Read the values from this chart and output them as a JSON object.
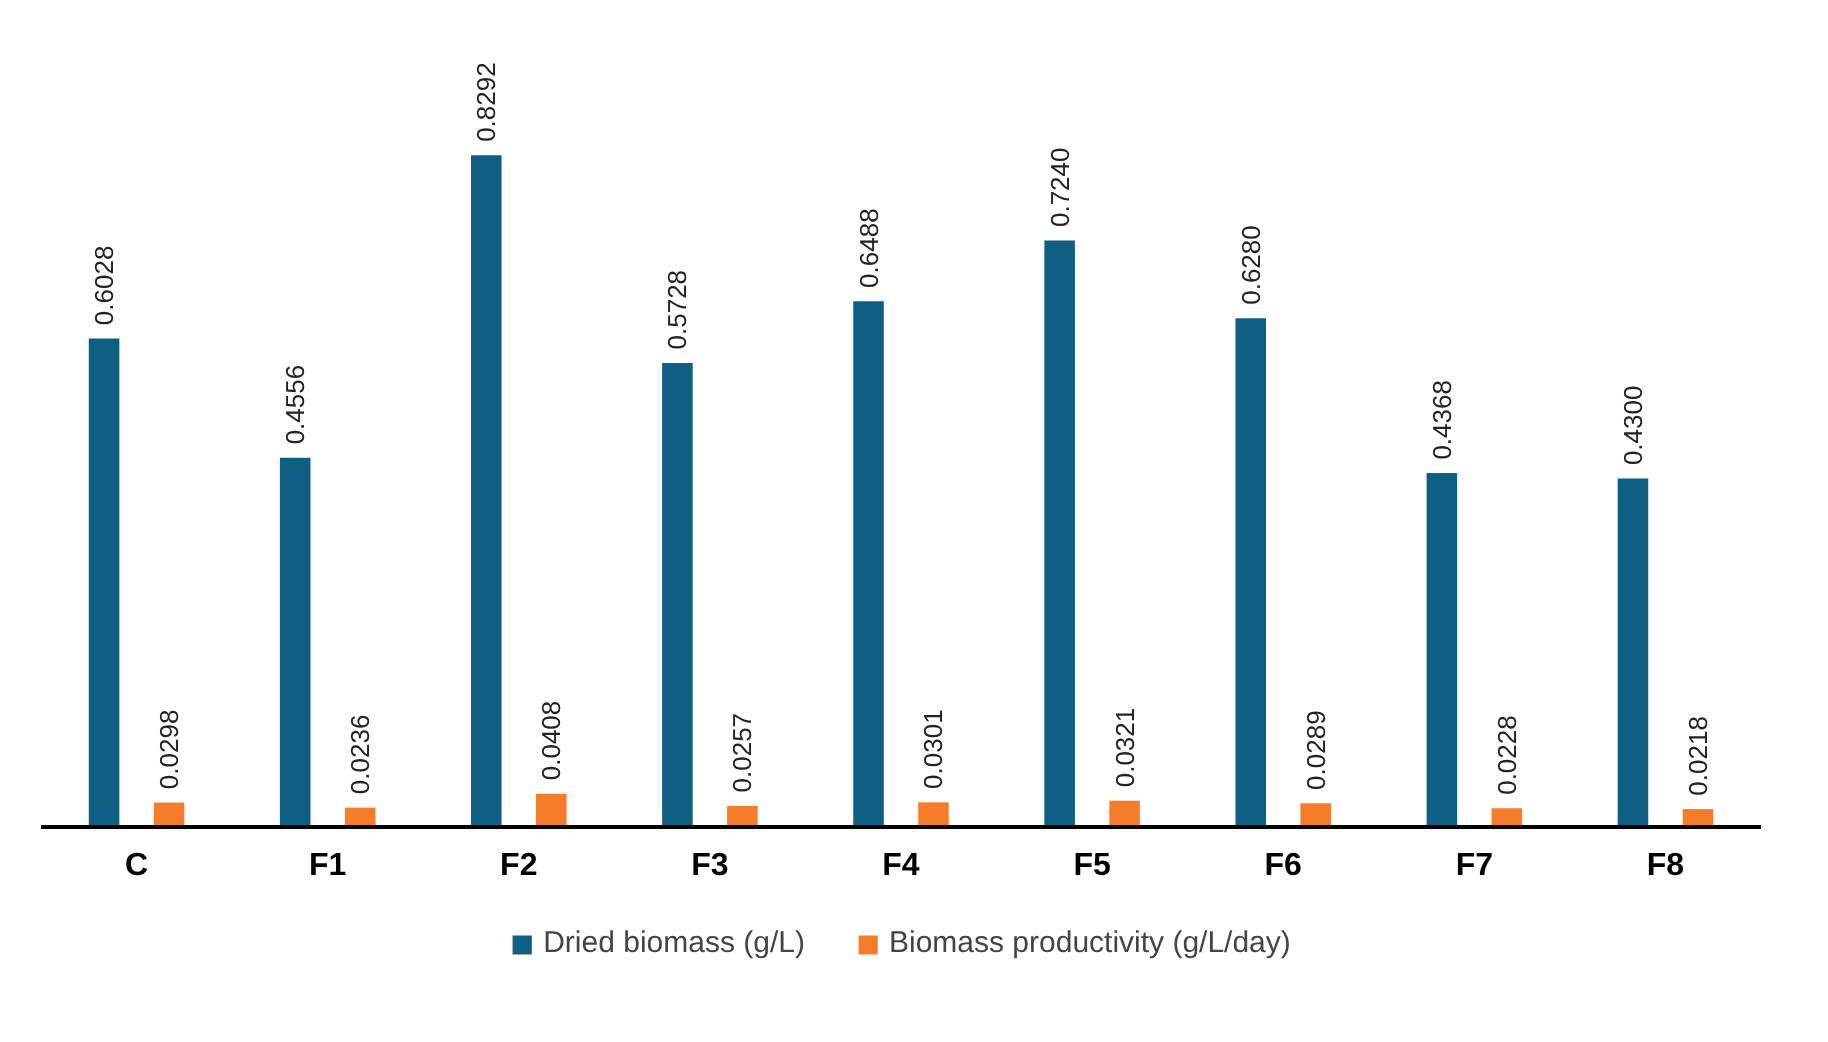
{
  "chart_data": {
    "type": "bar",
    "categories": [
      "C",
      "F1",
      "F2",
      "F3",
      "F4",
      "F5",
      "F6",
      "F7",
      "F8"
    ],
    "series": [
      {
        "name": "Dried biomass (g/L)",
        "color": "#0f5f82",
        "values": [
          0.6028,
          0.4556,
          0.8292,
          0.5728,
          0.6488,
          0.724,
          0.628,
          0.4368,
          0.43
        ],
        "value_labels": [
          "0.6028",
          "0.4556",
          "0.8292",
          "0.5728",
          "0.6488",
          "0.7240",
          "0.6280",
          "0.4368",
          "0.4300"
        ]
      },
      {
        "name": "Biomass productivity (g/L/day)",
        "color": "#f57c2a",
        "values": [
          0.0298,
          0.0236,
          0.0408,
          0.0257,
          0.0301,
          0.0321,
          0.0289,
          0.0228,
          0.0218
        ]
      }
    ],
    "data_labels": true,
    "legend": "bottom",
    "grid": false
  }
}
